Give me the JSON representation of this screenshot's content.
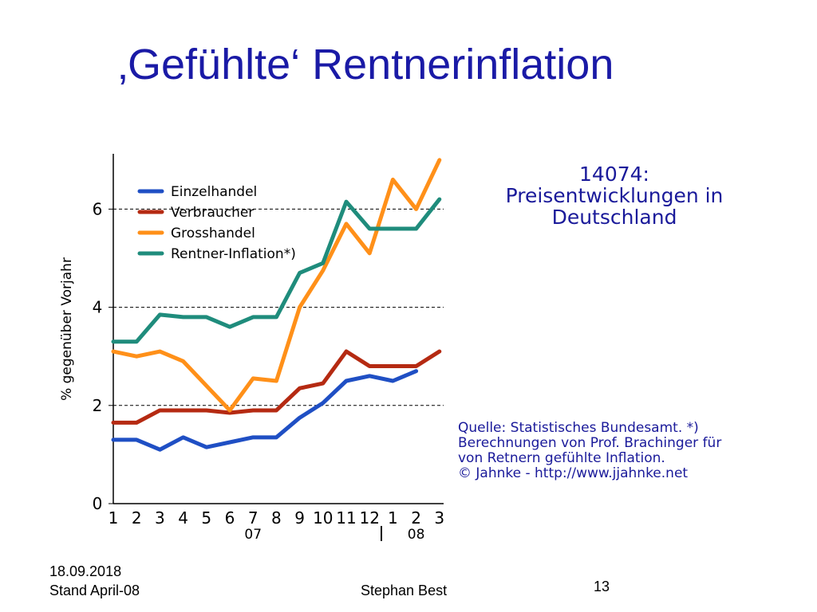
{
  "slide": {
    "title": "‚Gefühlte‘ Rentnerinflation",
    "headline": [
      "14074:",
      "Preisentwicklungen in",
      "Deutschland"
    ],
    "source": [
      "Quelle: Statistisches Bundesamt. *)",
      "Berechnungen von Prof. Brachinger für",
      "von Retnern gefühlte Inflation.",
      "© Jahnke - http://www.jjahnke.net"
    ],
    "footer": {
      "date": "18.09.2018",
      "stand": "Stand April-08",
      "author": "Stephan Best",
      "page": "13"
    }
  },
  "chart_data": {
    "type": "line",
    "ylabel": "% gegenüber Vorjahr",
    "ylim": [
      0,
      7
    ],
    "yticks": [
      0,
      2,
      4,
      6
    ],
    "gridlines": [
      2,
      4,
      6
    ],
    "categories": [
      "1",
      "2",
      "3",
      "4",
      "5",
      "6",
      "7",
      "8",
      "9",
      "10",
      "11",
      "12",
      "1",
      "2",
      "3"
    ],
    "year_labels": [
      {
        "label": "07",
        "at_category_index": 6
      },
      {
        "label": "08",
        "at_category_index": 13
      }
    ],
    "legend_position": "top-left",
    "series": [
      {
        "name": "Einzelhandel",
        "color": "#1f4fc4",
        "values": [
          1.3,
          1.3,
          1.1,
          1.35,
          1.15,
          1.25,
          1.35,
          1.35,
          1.75,
          2.05,
          2.5,
          2.6,
          2.5,
          2.7,
          null
        ]
      },
      {
        "name": "Verbraucher",
        "color": "#b52a12",
        "values": [
          1.65,
          1.65,
          1.9,
          1.9,
          1.9,
          1.85,
          1.9,
          1.9,
          2.35,
          2.45,
          3.1,
          2.8,
          2.8,
          2.8,
          3.1
        ]
      },
      {
        "name": "Grosshandel",
        "color": "#ff9019",
        "values": [
          3.1,
          3.0,
          3.1,
          2.9,
          2.4,
          1.9,
          2.55,
          2.5,
          4.0,
          4.75,
          5.7,
          5.1,
          6.6,
          6.0,
          7.0
        ]
      },
      {
        "name": "Rentner-Inflation*)",
        "color": "#1f8c7c",
        "values": [
          3.3,
          3.3,
          3.85,
          3.8,
          3.8,
          3.6,
          3.8,
          3.8,
          4.7,
          4.9,
          6.15,
          5.6,
          5.6,
          5.6,
          6.2
        ]
      }
    ]
  }
}
